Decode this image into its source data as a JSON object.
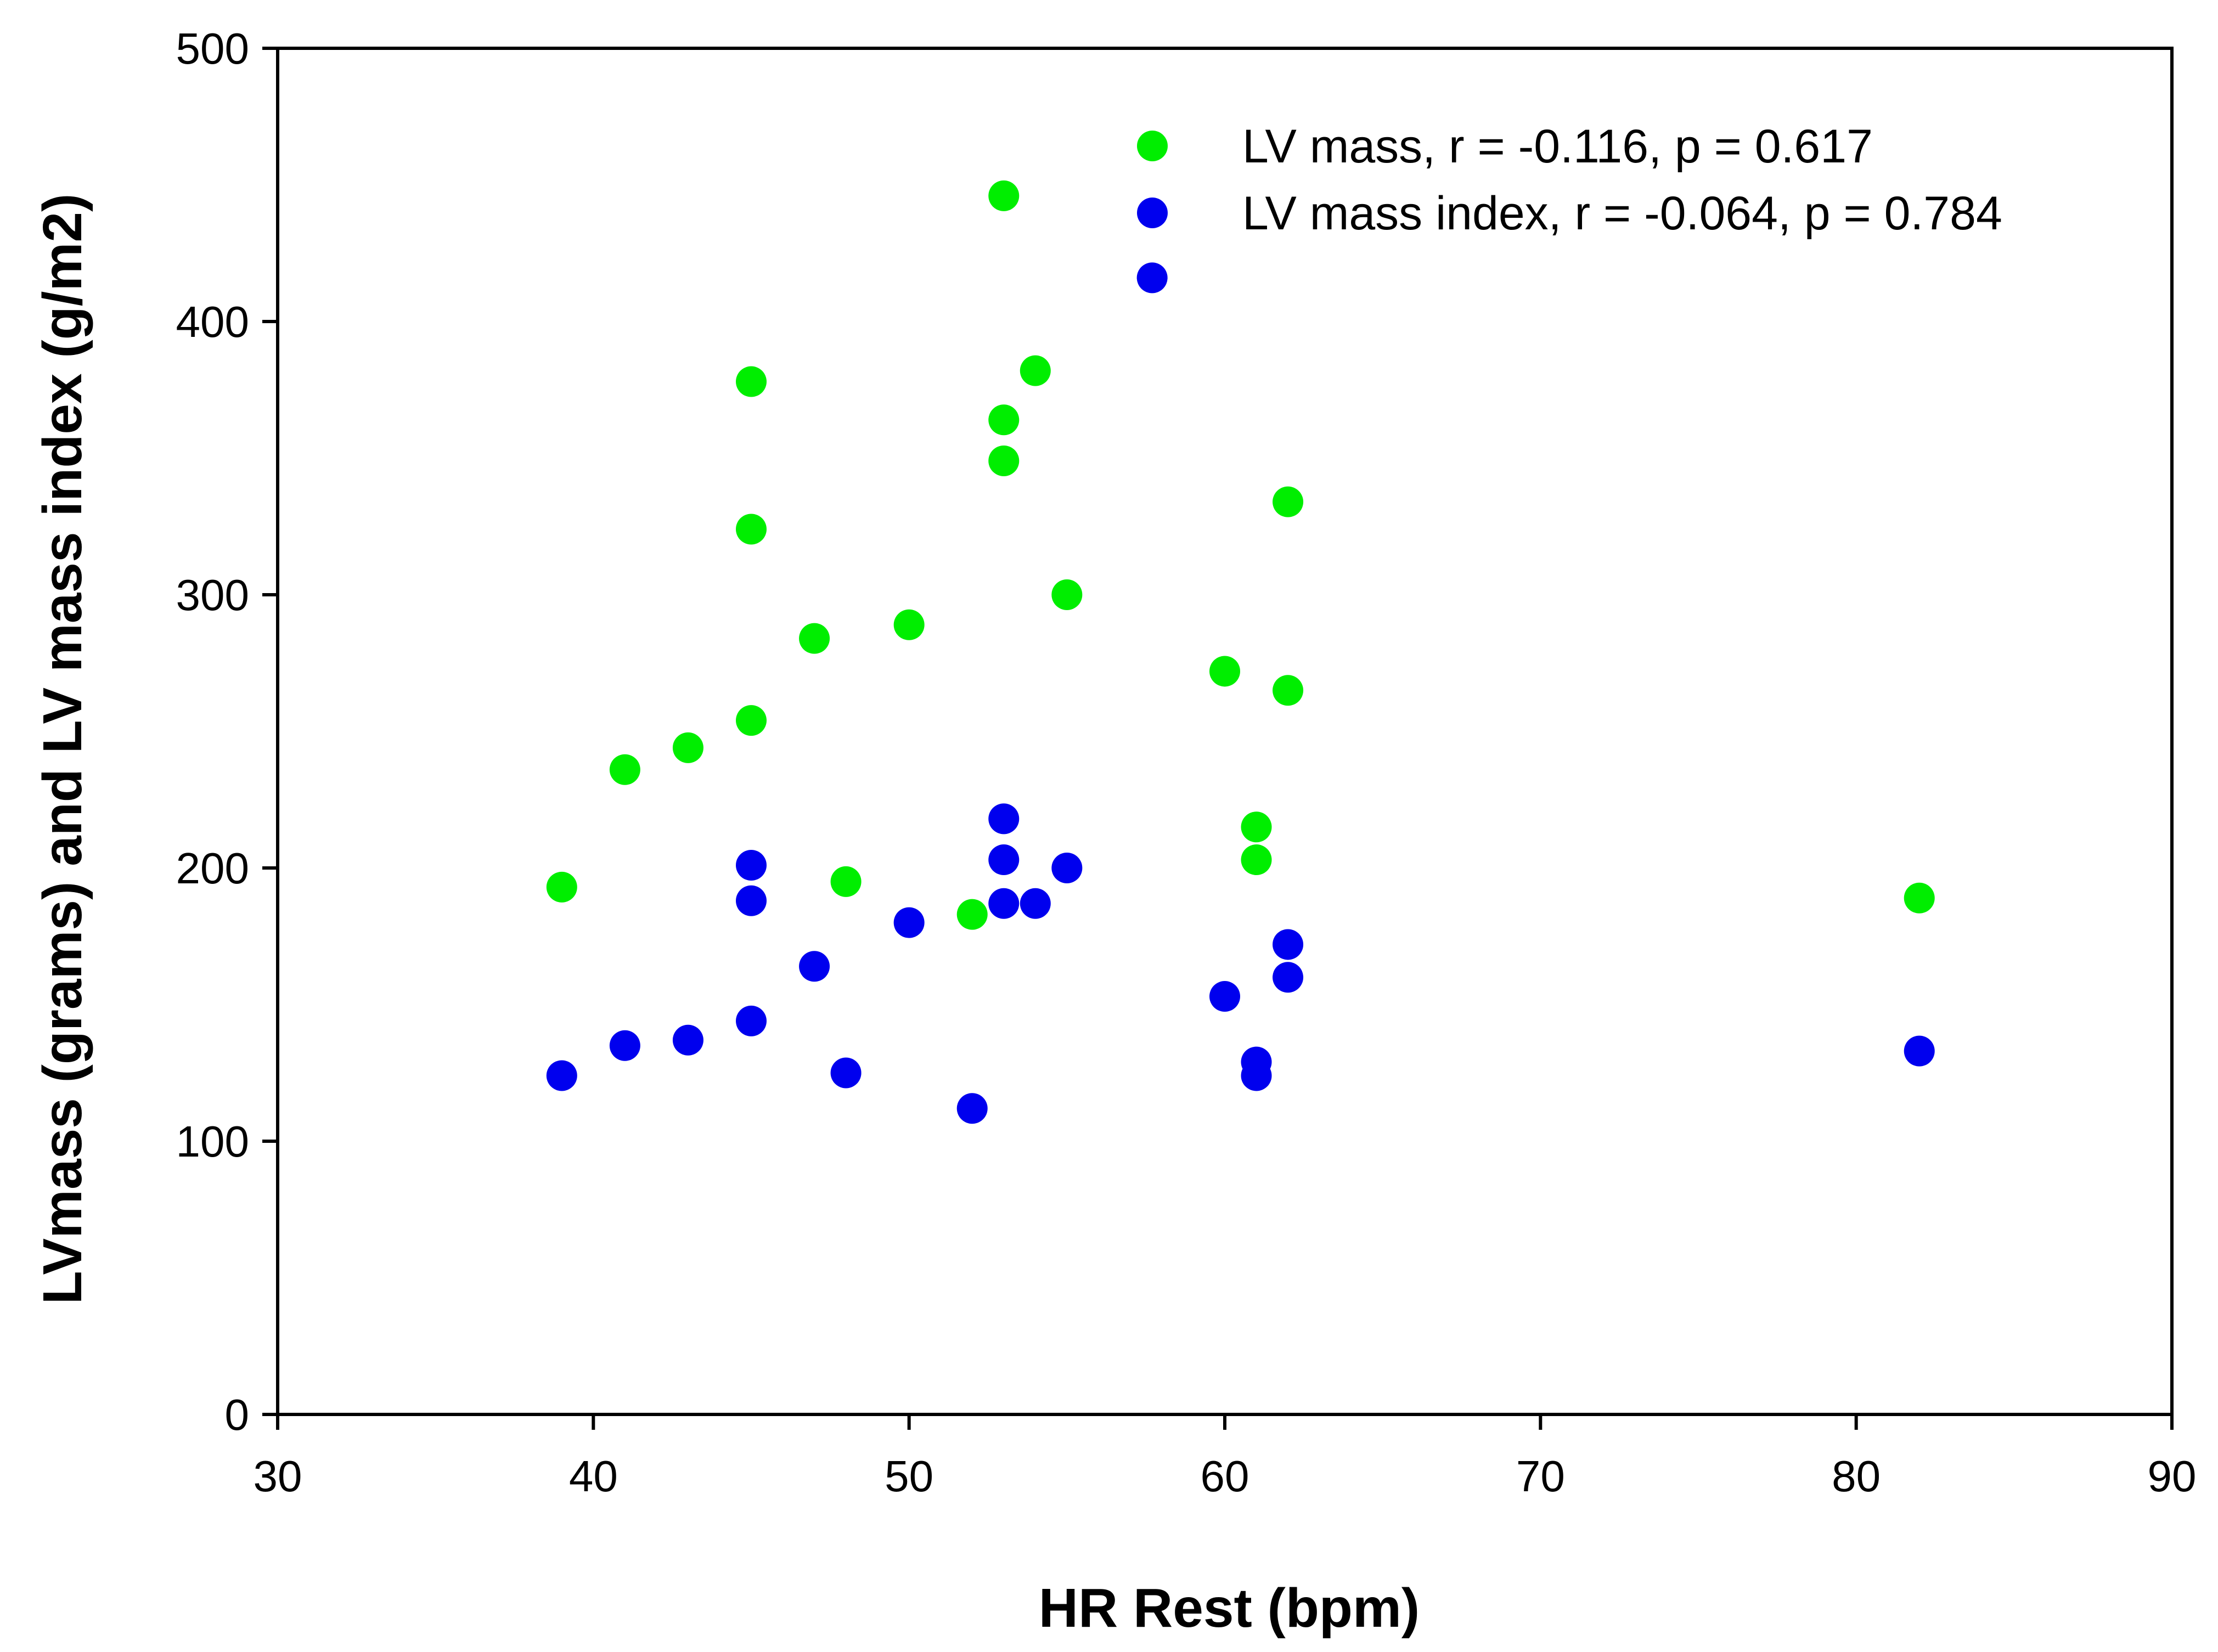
{
  "chart_data": {
    "type": "scatter",
    "title": "",
    "xlabel": "HR Rest (bpm)",
    "ylabel": "LVmass (grams) and LV mass index (g/m2)",
    "xlim": [
      30,
      90
    ],
    "ylim": [
      0,
      500
    ],
    "xticks": [
      30,
      40,
      50,
      60,
      70,
      80,
      90
    ],
    "yticks": [
      0,
      100,
      200,
      300,
      400,
      500
    ],
    "grid": false,
    "legend_position": "top-right",
    "series": [
      {
        "name": "LV mass, r = -0.116, p = 0.617",
        "color": "#00ee00",
        "points": [
          {
            "x": 39,
            "y": 193
          },
          {
            "x": 41,
            "y": 236
          },
          {
            "x": 43,
            "y": 244
          },
          {
            "x": 45,
            "y": 378
          },
          {
            "x": 45,
            "y": 324
          },
          {
            "x": 45,
            "y": 254
          },
          {
            "x": 47,
            "y": 284
          },
          {
            "x": 48,
            "y": 195
          },
          {
            "x": 50,
            "y": 289
          },
          {
            "x": 52,
            "y": 183
          },
          {
            "x": 53,
            "y": 446
          },
          {
            "x": 53,
            "y": 364
          },
          {
            "x": 53,
            "y": 349
          },
          {
            "x": 54,
            "y": 382
          },
          {
            "x": 55,
            "y": 300
          },
          {
            "x": 60,
            "y": 272
          },
          {
            "x": 61,
            "y": 215
          },
          {
            "x": 61,
            "y": 203
          },
          {
            "x": 62,
            "y": 334
          },
          {
            "x": 62,
            "y": 265
          },
          {
            "x": 82,
            "y": 189
          }
        ]
      },
      {
        "name": "LV mass index, r = -0.064, p = 0.784",
        "color": "#0000ee",
        "points": [
          {
            "x": 39,
            "y": 124
          },
          {
            "x": 41,
            "y": 135
          },
          {
            "x": 43,
            "y": 137
          },
          {
            "x": 45,
            "y": 201
          },
          {
            "x": 45,
            "y": 188
          },
          {
            "x": 45,
            "y": 144
          },
          {
            "x": 47,
            "y": 164
          },
          {
            "x": 48,
            "y": 125
          },
          {
            "x": 50,
            "y": 180
          },
          {
            "x": 52,
            "y": 112
          },
          {
            "x": 53,
            "y": 218
          },
          {
            "x": 53,
            "y": 203
          },
          {
            "x": 53,
            "y": 187
          },
          {
            "x": 54,
            "y": 187
          },
          {
            "x": 55,
            "y": 200
          },
          {
            "x": 57.7,
            "y": 416
          },
          {
            "x": 60,
            "y": 153
          },
          {
            "x": 61,
            "y": 129
          },
          {
            "x": 61,
            "y": 124
          },
          {
            "x": 62,
            "y": 172
          },
          {
            "x": 62,
            "y": 160
          },
          {
            "x": 82,
            "y": 133
          }
        ]
      }
    ]
  }
}
